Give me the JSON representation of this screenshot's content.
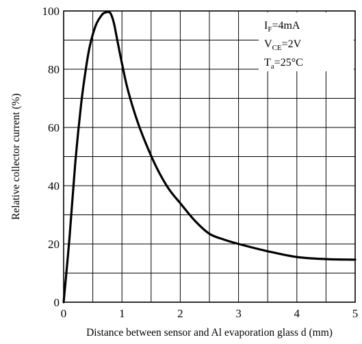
{
  "chart_data": {
    "type": "line",
    "title": "",
    "xlabel": "Distance between sensor and Al evaporation glass d (mm)",
    "ylabel": "Relative collector current (%)",
    "xlim": [
      0,
      5
    ],
    "ylim": [
      0,
      100
    ],
    "x_ticks": [
      0,
      1,
      2,
      3,
      4,
      5
    ],
    "x_tick_labels": [
      "0",
      "1",
      "2",
      "3",
      "4",
      "5"
    ],
    "y_ticks": [
      0,
      20,
      40,
      60,
      80,
      100
    ],
    "y_tick_labels": [
      "0",
      "20",
      "40",
      "60",
      "80",
      "100"
    ],
    "grid": true,
    "x_minor_step": 0.5,
    "y_minor_step": 10,
    "conditions": [
      {
        "main": "I",
        "sub": "F",
        "rest": "=4mA"
      },
      {
        "main": "V",
        "sub": "CE",
        "rest": "=2V"
      },
      {
        "main": "T",
        "sub": "a",
        "rest": "=25°C"
      }
    ],
    "conditions_placement": "top-right",
    "series": [
      {
        "x": [
          0,
          0.1,
          0.2,
          0.3,
          0.38,
          0.45,
          0.55,
          0.65,
          0.72,
          0.8,
          0.86,
          0.92,
          1.0,
          1.1,
          1.25,
          1.4,
          1.6,
          1.8,
          2.0,
          2.25,
          2.5,
          2.75,
          3.0,
          3.5,
          4.0,
          4.5,
          5.0
        ],
        "values": [
          0,
          22,
          48,
          68,
          80,
          88,
          95,
          98.5,
          99.5,
          99.3,
          96,
          90,
          82,
          73,
          63,
          55,
          46,
          39,
          34,
          28,
          23.5,
          21.5,
          20,
          17.5,
          15.5,
          14.8,
          14.6
        ]
      }
    ]
  }
}
